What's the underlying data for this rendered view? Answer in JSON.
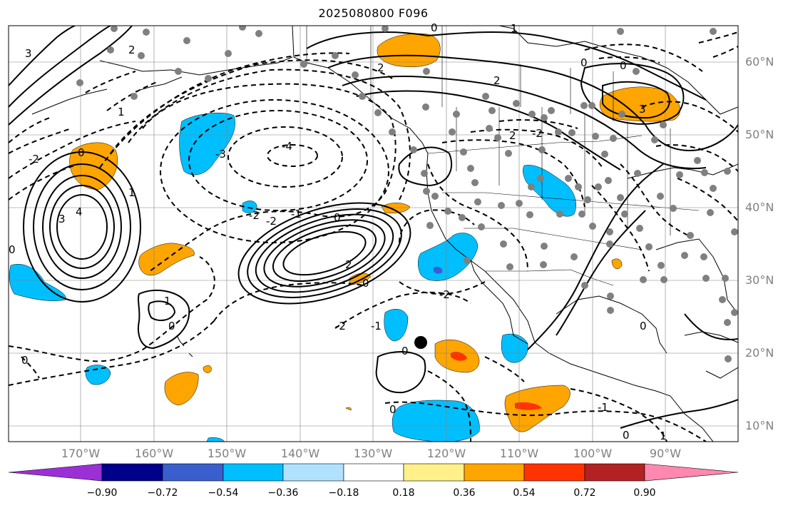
{
  "title": "2025080800 F096",
  "lat_labels": [
    "60°N",
    "50°N",
    "40°N",
    "30°N",
    "20°N",
    "10°N"
  ],
  "lon_labels": [
    "170°W",
    "160°W",
    "150°W",
    "140°W",
    "130°W",
    "120°W",
    "110°W",
    "100°W",
    "90°W"
  ],
  "colorbar": {
    "ticks": [
      "−0.90",
      "−0.72",
      "−0.54",
      "−0.36",
      "−0.18",
      "0.18",
      "0.36",
      "0.54",
      "0.72",
      "0.90"
    ],
    "colors": [
      "#9b30d6",
      "#00008b",
      "#3a5fcd",
      "#00bfff",
      "#b0e2ff",
      "#ffffff",
      "#fff08a",
      "#ffa500",
      "#ff3300",
      "#b22222",
      "#ff88b0"
    ]
  },
  "contour_labels": [
    "0",
    "1",
    "2",
    "3",
    "4",
    "-4",
    "-3",
    "-2",
    "-1"
  ],
  "fill_colors": {
    "light_blue": "#00bfff",
    "orange": "#ffa500",
    "red": "#ff3300",
    "blue": "#3a5fcd"
  }
}
